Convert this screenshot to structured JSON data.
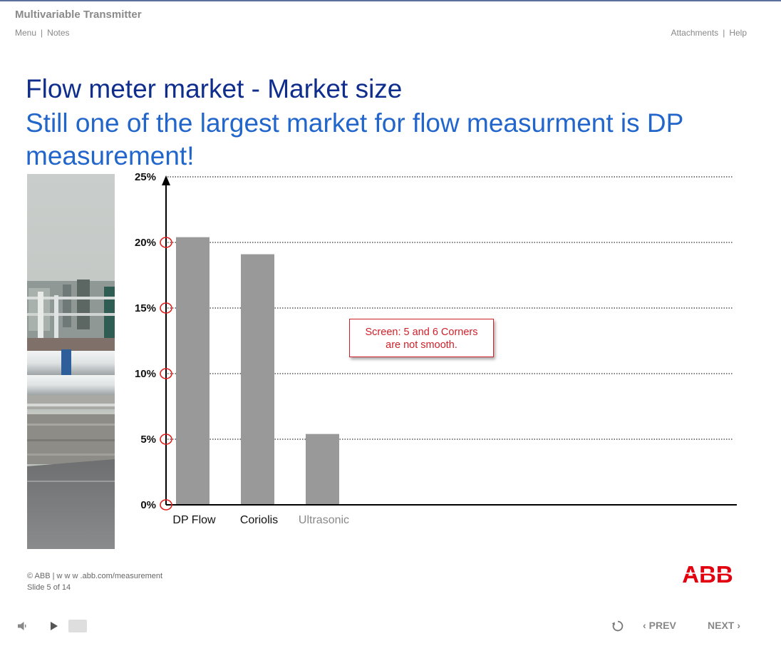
{
  "header": {
    "course_title": "Multivariable Transmitter",
    "left_links": [
      "Menu",
      "Notes"
    ],
    "right_links": [
      "Attachments",
      "Help"
    ]
  },
  "slide": {
    "title": "Flow meter market - Market size",
    "subtitle": "Still one of the largest market for flow measurment is DP measurement!",
    "annotation_line1": "Screen: 5 and 6 Corners",
    "annotation_line2": "are not smooth."
  },
  "chart_data": {
    "type": "bar",
    "categories": [
      "DP Flow",
      "Coriolis",
      "Ultrasonic"
    ],
    "values": [
      20.4,
      19.1,
      5.4
    ],
    "ylim": [
      0,
      25
    ],
    "yticks": [
      0,
      5,
      10,
      15,
      20,
      25
    ],
    "ytick_labels": [
      "0%",
      "5%",
      "10%",
      "15%",
      "20%",
      "25%"
    ],
    "grid": true,
    "colors": {
      "bar": "#999999",
      "axis": "#000000",
      "grid": "#555555",
      "marker": "#e02020",
      "category_dim": "#888888"
    }
  },
  "footer": {
    "copyright": "© ABB | w w w .abb.com/measurement",
    "slide_counter": "Slide 5 of 14",
    "logo_text": "ABB",
    "brand_color": "#e2000f"
  },
  "controls": {
    "prev_label": "PREV",
    "next_label": "NEXT"
  }
}
